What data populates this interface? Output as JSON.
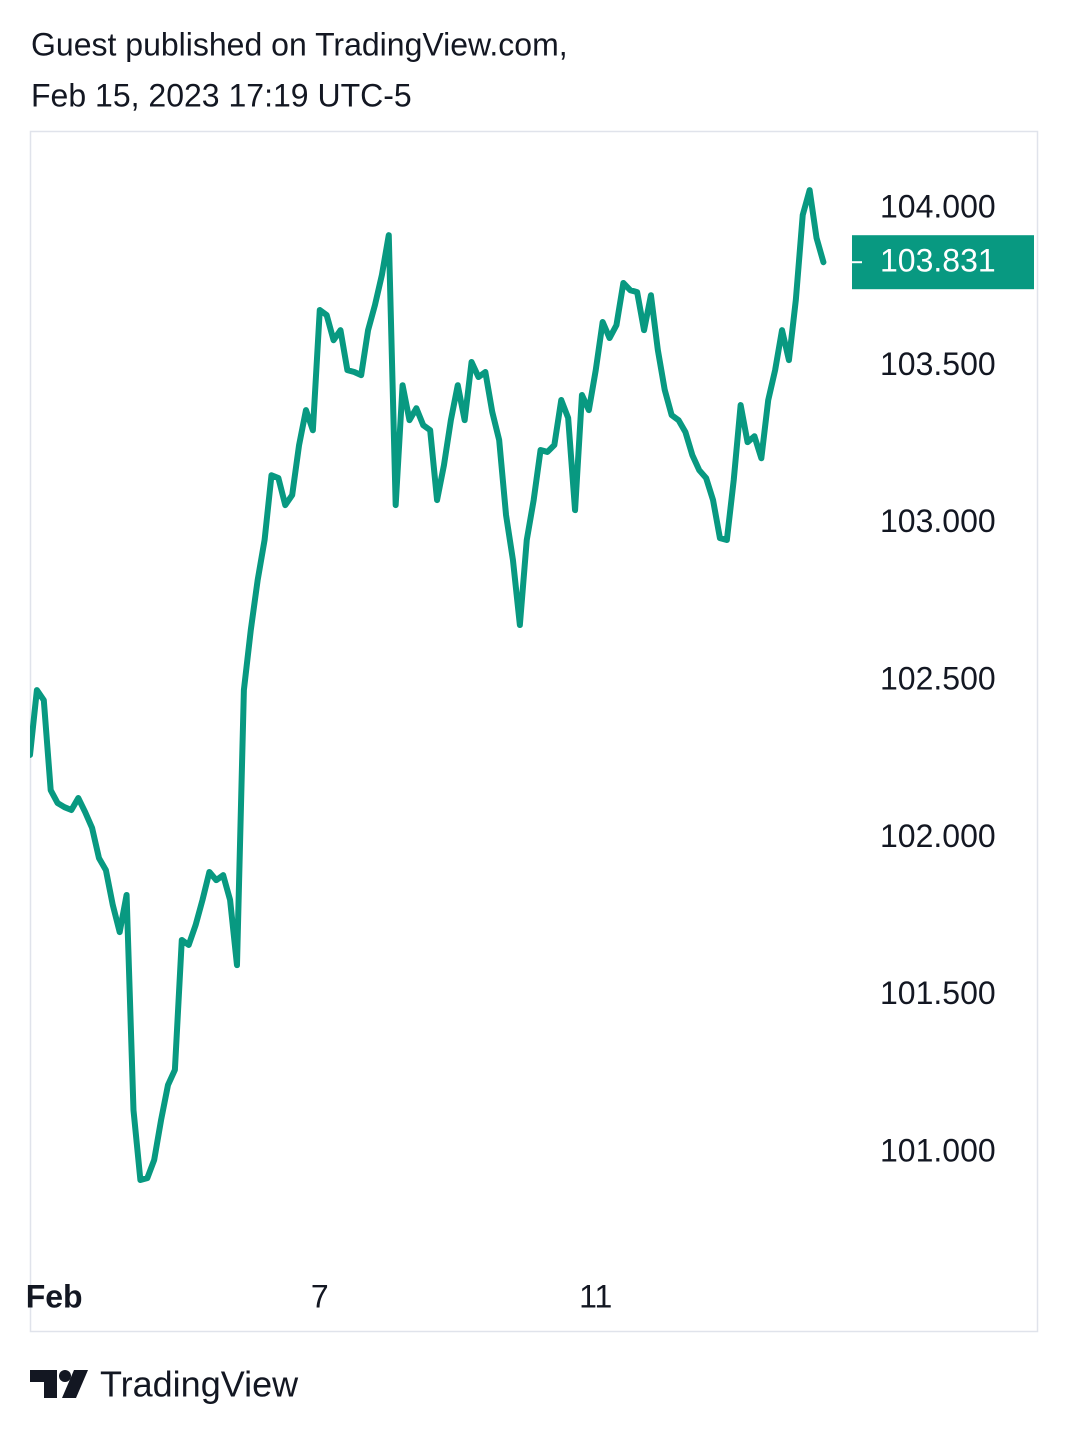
{
  "header": {
    "line1": "Guest published on TradingView.com,",
    "line2": "Feb 15, 2023 17:19 UTC-5"
  },
  "footer": {
    "brand": "TradingView"
  },
  "chart_data": {
    "type": "line",
    "color": "#089981",
    "xlim": [
      2.8,
      17.41
    ],
    "xticks": [
      {
        "value": 3.15,
        "label": "Feb"
      },
      7,
      11
    ],
    "ylim": [
      100.431,
      104.248
    ],
    "yticks": [
      {
        "value": 101,
        "label": "101.000"
      },
      {
        "value": 101.5,
        "label": "101.500"
      },
      {
        "value": 102,
        "label": "102.000"
      },
      {
        "value": 102.5,
        "label": "102.500"
      },
      {
        "value": 103,
        "label": "103.000"
      },
      {
        "value": 103.5,
        "label": "103.500"
      },
      {
        "value": 104,
        "label": "104.000"
      }
    ],
    "last_value_label": 103.831,
    "x": [
      2.8,
      2.9,
      3.0,
      3.1,
      3.2,
      3.3,
      3.4,
      3.5,
      3.6,
      3.7,
      3.8,
      3.9,
      4.0,
      4.1,
      4.2,
      4.3,
      4.4,
      4.5,
      4.6,
      4.7,
      4.8,
      4.9,
      5.0,
      5.1,
      5.2,
      5.3,
      5.4,
      5.5,
      5.6,
      5.7,
      5.8,
      5.9,
      6.0,
      6.1,
      6.2,
      6.3,
      6.4,
      6.5,
      6.6,
      6.7,
      6.8,
      6.9,
      7.0,
      7.1,
      7.2,
      7.3,
      7.4,
      7.5,
      7.6,
      7.7,
      7.8,
      7.9,
      8.0,
      8.1,
      8.2,
      8.3,
      8.4,
      8.5,
      8.6,
      8.7,
      8.8,
      8.9,
      9.0,
      9.1,
      9.2,
      9.3,
      9.4,
      9.5,
      9.6,
      9.7,
      9.8,
      9.9,
      10.0,
      10.1,
      10.2,
      10.3,
      10.4,
      10.5,
      10.6,
      10.7,
      10.8,
      10.9,
      11.0,
      11.1,
      11.2,
      11.3,
      11.4,
      11.5,
      11.6,
      11.7,
      11.8,
      11.9,
      12.0,
      12.1,
      12.2,
      12.3,
      12.4,
      12.5,
      12.6,
      12.7,
      12.8,
      12.9,
      13.0,
      13.1,
      13.2,
      13.3,
      13.4,
      13.5,
      13.6,
      13.7,
      13.8,
      13.9,
      14.0,
      14.1,
      14.2,
      14.3
    ],
    "values": [
      102.265,
      102.471,
      102.439,
      102.153,
      102.112,
      102.099,
      102.09,
      102.128,
      102.083,
      102.033,
      101.937,
      101.899,
      101.788,
      101.702,
      101.82,
      101.136,
      100.914,
      100.92,
      100.978,
      101.105,
      101.216,
      101.264,
      101.677,
      101.661,
      101.724,
      101.804,
      101.893,
      101.867,
      101.883,
      101.804,
      101.597,
      102.471,
      102.662,
      102.821,
      102.948,
      103.154,
      103.145,
      103.059,
      103.091,
      103.25,
      103.361,
      103.297,
      103.679,
      103.663,
      103.583,
      103.615,
      103.488,
      103.482,
      103.472,
      103.615,
      103.695,
      103.79,
      103.917,
      103.059,
      103.44,
      103.329,
      103.367,
      103.313,
      103.297,
      103.075,
      103.186,
      103.329,
      103.44,
      103.329,
      103.514,
      103.466,
      103.482,
      103.355,
      103.266,
      103.027,
      102.884,
      102.678,
      102.948,
      103.075,
      103.234,
      103.228,
      103.25,
      103.393,
      103.336,
      103.043,
      103.409,
      103.361,
      103.488,
      103.641,
      103.59,
      103.631,
      103.765,
      103.742,
      103.736,
      103.615,
      103.726,
      103.552,
      103.425,
      103.345,
      103.329,
      103.291,
      103.218,
      103.17,
      103.145,
      103.075,
      102.954,
      102.948,
      103.139,
      103.377,
      103.259,
      103.278,
      103.208,
      103.393,
      103.488,
      103.615,
      103.52,
      103.711,
      103.981,
      104.06,
      103.908,
      103.831
    ]
  }
}
